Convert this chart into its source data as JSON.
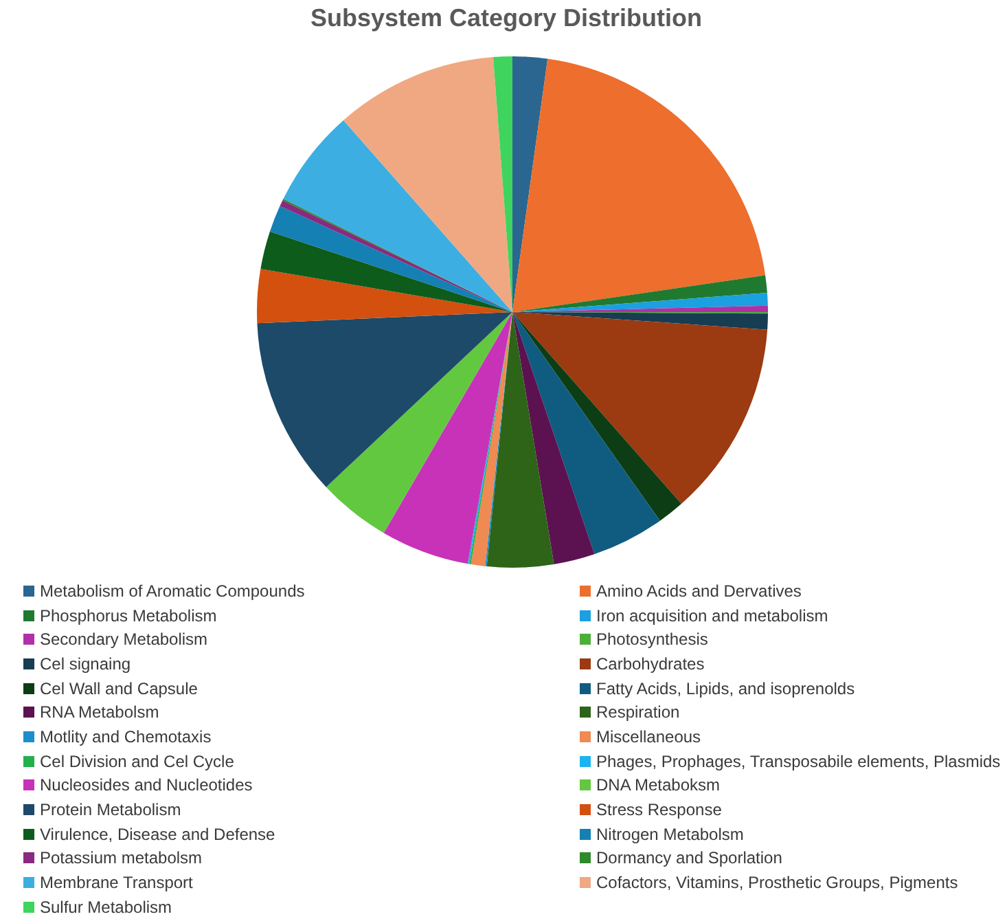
{
  "chart_data": {
    "type": "pie",
    "title": "Subsystem Category Distribution",
    "categories": [
      "Metabolism of Aromatic Compounds",
      "Amino Acids and Dervatives",
      "Phosphorus Metabolism",
      "Iron acquisition and metabolism",
      "Secondary Metabolism",
      "Photosynthesis",
      "Cel signaing",
      "Carbohydrates",
      "Cel Wall and Capsule",
      "Fatty Acids, Lipids, and isoprenolds",
      "RNA Metabolsm",
      "Respiration",
      "Motlity and Chemotaxis",
      "Miscellaneous",
      "Cel Division and Cel Cycle",
      "Phages, Prophages, Transposabile elements, Plasmids",
      "Nucleosides and Nucleotides",
      "DNA Metaboksm",
      "Protein Metabolism",
      "Stress Response",
      "Virulence, Disease and Defense",
      "Nitrogen Metabolsm",
      "Potassium metabolsm",
      "Dormancy and Sporlation",
      "Membrane Transport",
      "Cofactors, Vitamins, Prosthetic Groups, Pigments",
      "Sulfur Metabolism"
    ],
    "values": [
      2.2,
      20.5,
      1.1,
      0.8,
      0.4,
      0.1,
      1.0,
      12.4,
      1.7,
      4.6,
      2.6,
      4.2,
      0.1,
      0.9,
      0.1,
      0.1,
      5.6,
      4.6,
      11.3,
      3.4,
      2.4,
      1.7,
      0.4,
      0.1,
      6.2,
      10.3,
      1.2
    ],
    "colors": [
      "#2a6690",
      "#ed6e2d",
      "#1f7a30",
      "#1ba0e0",
      "#b030a8",
      "#4caf3a",
      "#173d52",
      "#9c3a12",
      "#0d3d14",
      "#0f5c80",
      "#5c1250",
      "#2d6418",
      "#1a8fcc",
      "#ef8a52",
      "#22b04a",
      "#1cb4f0",
      "#c832b8",
      "#62c840",
      "#1c4a68",
      "#d4500e",
      "#0e5c1c",
      "#1480b4",
      "#882a80",
      "#2e8a2a",
      "#3caee2",
      "#f0a882",
      "#3ed45e"
    ],
    "legend": "bottom"
  }
}
